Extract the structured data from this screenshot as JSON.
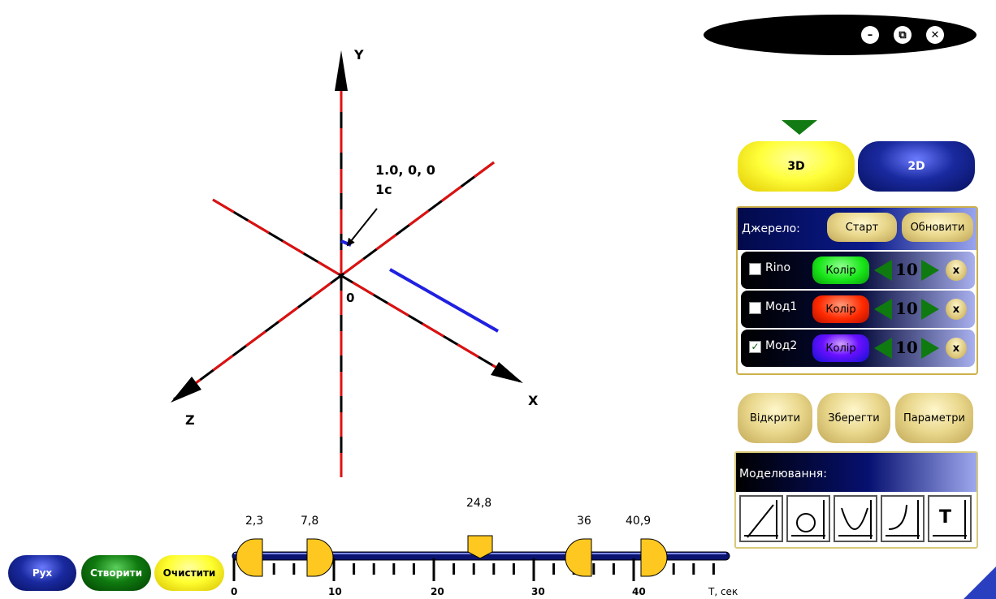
{
  "window": {
    "minimize": "–",
    "restore": "⧉",
    "close": "✕"
  },
  "view_modes": {
    "mode_3d": "3D",
    "mode_2d": "2D"
  },
  "plot": {
    "axis_y": "Y",
    "axis_x": "X",
    "axis_z": "Z",
    "origin": "0",
    "point_coords": "1.0, 0, 0",
    "point_time": "1с"
  },
  "source_panel": {
    "label": "Джерело:",
    "start": "Старт",
    "refresh": "Обновити",
    "rows": [
      {
        "name": "Rino",
        "checked": "",
        "color_label": "Колір",
        "color": "#19e619",
        "value": "10",
        "remove": "x"
      },
      {
        "name": "Мод1",
        "checked": "",
        "color_label": "Колір",
        "color": "#ff2a00",
        "value": "10",
        "remove": "x"
      },
      {
        "name": "Мод2",
        "checked": "✓",
        "color_label": "Колір",
        "color": "#5a00ff",
        "value": "10",
        "remove": "x"
      }
    ]
  },
  "file_buttons": {
    "open": "Відкрити",
    "save": "Зберегти",
    "params": "Параметри"
  },
  "modeling": {
    "label": "Моделювання:",
    "icons": [
      "linear-graph-icon",
      "circle-graph-icon",
      "parabola-graph-icon",
      "curve-graph-icon",
      "t-graph-icon"
    ],
    "t_glyph": "T"
  },
  "bottom_buttons": {
    "move": "Рух",
    "create": "Створити",
    "clear": "Очистити"
  },
  "timeline": {
    "markers": [
      "2,3",
      "7,8",
      "24,8",
      "36",
      "40,9"
    ],
    "current": "24,8",
    "axis_labels": [
      "0",
      "10",
      "20",
      "30",
      "40"
    ],
    "unit": "T, сек"
  }
}
